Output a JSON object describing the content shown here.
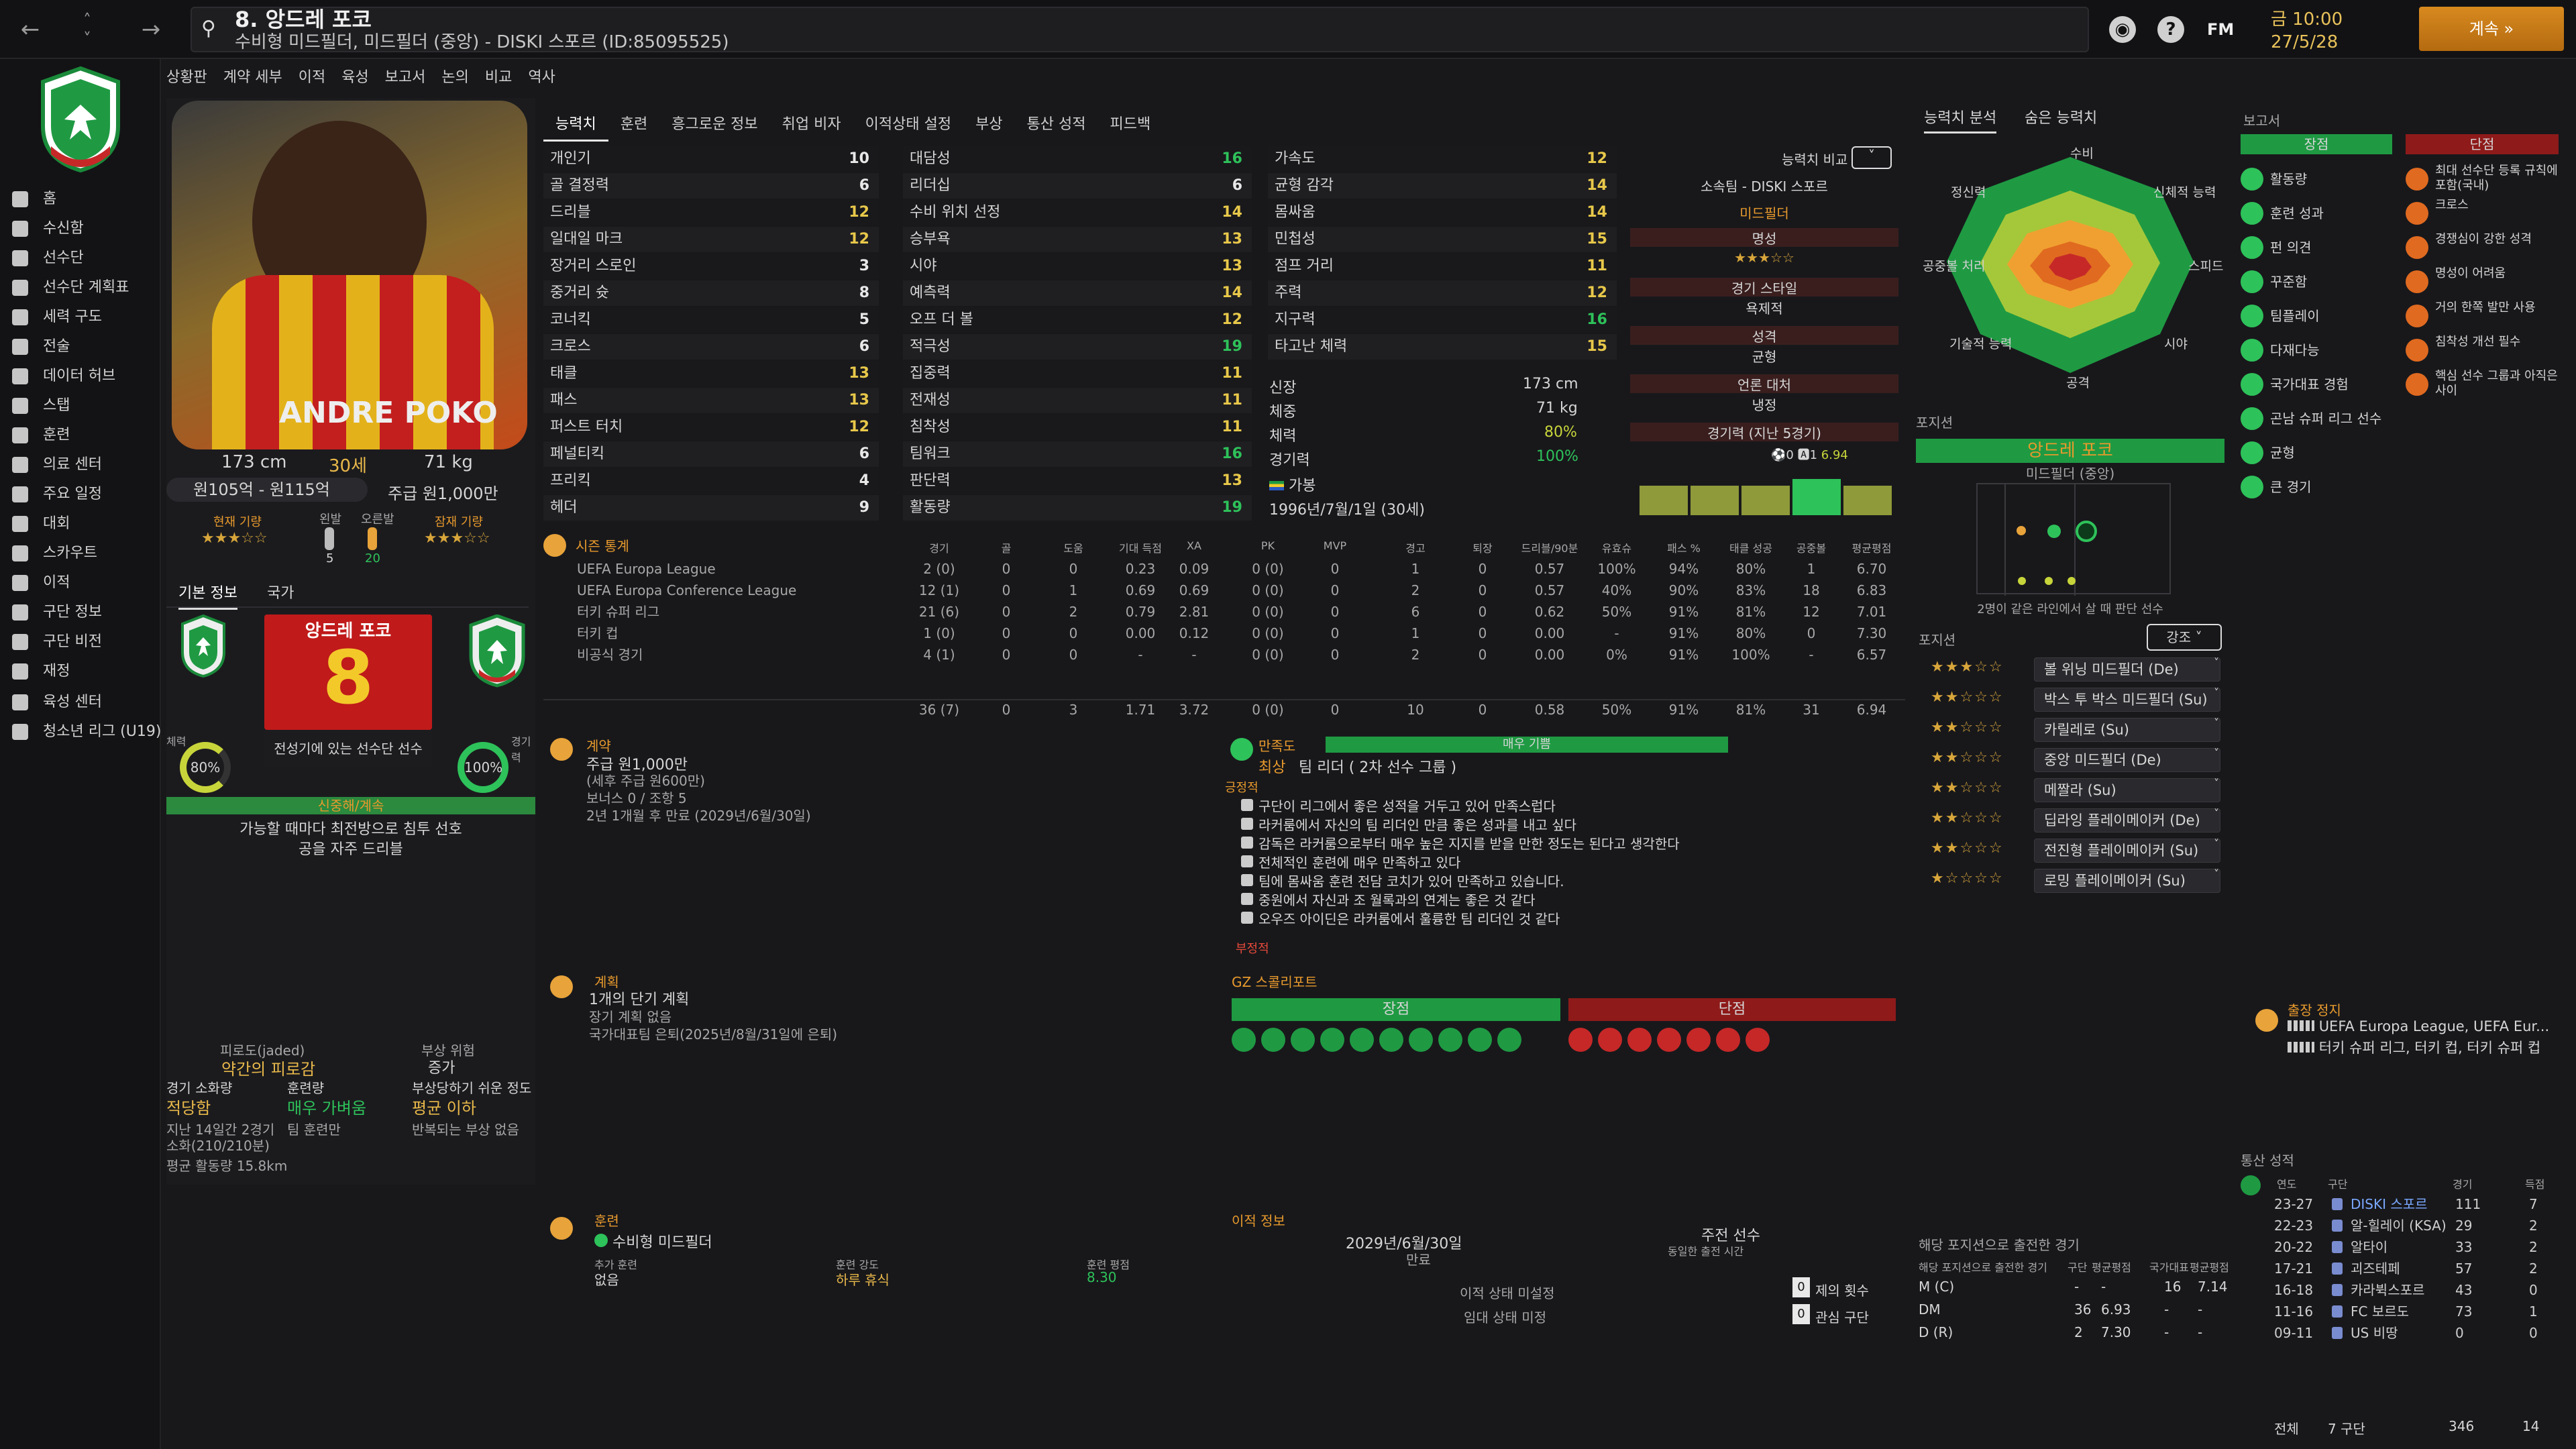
{
  "topbar": {
    "title": "8. 앙드레 포코",
    "subtitle": "수비형 미드필더, 미드필더 (중앙) - DISKI 스포르 (ID:85095525)",
    "date_line1": "금 10:00",
    "date_line2": "27/5/28",
    "continue_label": "계속",
    "fm_label": "FM"
  },
  "sidebar": {
    "items": [
      {
        "label": "홈"
      },
      {
        "label": "수신함"
      },
      {
        "label": "선수단"
      },
      {
        "label": "선수단 계획표"
      },
      {
        "label": "세력 구도"
      },
      {
        "label": "전술"
      },
      {
        "label": "데이터 허브"
      },
      {
        "label": "스탭"
      },
      {
        "label": "훈련"
      },
      {
        "label": "의료 센터"
      },
      {
        "label": "주요 일정"
      },
      {
        "label": "대회"
      },
      {
        "label": "스카우트"
      },
      {
        "label": "이적"
      },
      {
        "label": "구단 정보"
      },
      {
        "label": "구단 비전"
      },
      {
        "label": "재정"
      },
      {
        "label": "육성 센터"
      },
      {
        "label": "청소년 리그 (U19)"
      }
    ]
  },
  "subnav": [
    "상황판",
    "계약 세부",
    "이적",
    "육성",
    "보고서",
    "논의",
    "비교",
    "역사"
  ],
  "profile": {
    "height": "173 cm",
    "age": "30세",
    "weight": "71 kg",
    "value_range": "원105억 - 원115억",
    "wage": "주급 원1,000만",
    "current_ability_label": "현재 기량",
    "left_foot_label": "왼발",
    "right_foot_label": "오른발",
    "left_foot_val": "5",
    "right_foot_val": "20",
    "potential_label": "잠재 기량",
    "photo_name": "ANDRE POKO",
    "tab_basic": "기본 정보",
    "tab_nation": "국가",
    "name_box": "앙드레 포코",
    "number": "8",
    "squad_status": "전성기에 있는 선수단 선수",
    "fitness_label": "체력",
    "fitness": "80%",
    "match_sharp_label": "경기력",
    "match_sharp": "100%",
    "personality": "신중해/계속",
    "pref1": "가능할 때마다 최전방으로 침투 선호",
    "pref2": "공을 자주 드리블"
  },
  "condition": {
    "fatigue_label": "피로도(jaded)",
    "fatigue_val": "약간의 피로감",
    "injury_label": "부상 위험",
    "injury_val": "증가",
    "match_load_label": "경기 소화량",
    "match_load_val": "적당함",
    "training_label": "훈련량",
    "training_val": "매우 가벼움",
    "prone_label": "부상당하기 쉬운 정도",
    "prone_val": "평균 이하",
    "load_note1": "지난 14일간 2경기",
    "load_note2": "소화(210/210분)",
    "training_note": "팀 훈련만",
    "injury_note": "반복되는 부상 없음",
    "distance": "평균 활동량 15.8km"
  },
  "tabs": [
    "능력치",
    "훈련",
    "흥그로운 정보",
    "취업 비자",
    "이적상태 설정",
    "부상",
    "통산 성적",
    "피드백"
  ],
  "attributes": {
    "col1": [
      {
        "name": "개인기",
        "val": "10"
      },
      {
        "name": "골 결정력",
        "val": "6"
      },
      {
        "name": "드리블",
        "val": "12"
      },
      {
        "name": "일대일 마크",
        "val": "12"
      },
      {
        "name": "장거리 스로인",
        "val": "3"
      },
      {
        "name": "중거리 슛",
        "val": "8"
      },
      {
        "name": "코너킥",
        "val": "5"
      },
      {
        "name": "크로스",
        "val": "6"
      },
      {
        "name": "태클",
        "val": "13"
      },
      {
        "name": "패스",
        "val": "13"
      },
      {
        "name": "퍼스트 터치",
        "val": "12"
      },
      {
        "name": "페널티킥",
        "val": "6"
      },
      {
        "name": "프리킥",
        "val": "4"
      },
      {
        "name": "헤더",
        "val": "9"
      }
    ],
    "col2": [
      {
        "name": "대담성",
        "val": "16"
      },
      {
        "name": "리더십",
        "val": "6"
      },
      {
        "name": "수비 위치 선정",
        "val": "14"
      },
      {
        "name": "승부욕",
        "val": "13"
      },
      {
        "name": "시야",
        "val": "13"
      },
      {
        "name": "예측력",
        "val": "14"
      },
      {
        "name": "오프 더 볼",
        "val": "12"
      },
      {
        "name": "적극성",
        "val": "19"
      },
      {
        "name": "집중력",
        "val": "11"
      },
      {
        "name": "전재성",
        "val": "11"
      },
      {
        "name": "침착성",
        "val": "11"
      },
      {
        "name": "팀워크",
        "val": "16"
      },
      {
        "name": "판단력",
        "val": "13"
      },
      {
        "name": "활동량",
        "val": "19"
      }
    ],
    "col3": [
      {
        "name": "가속도",
        "val": "12"
      },
      {
        "name": "균형 감각",
        "val": "14"
      },
      {
        "name": "몸싸움",
        "val": "14"
      },
      {
        "name": "민첩성",
        "val": "15"
      },
      {
        "name": "점프 거리",
        "val": "11"
      },
      {
        "name": "주력",
        "val": "12"
      },
      {
        "name": "지구력",
        "val": "16"
      },
      {
        "name": "타고난 체력",
        "val": "15"
      }
    ]
  },
  "bio": {
    "height_label": "신장",
    "height": "173 cm",
    "weight_label": "체중",
    "weight": "71 kg",
    "fitness_label": "체력",
    "fitness": "80%",
    "sharpness_label": "경기력",
    "sharpness": "100%",
    "status": "가봉",
    "dob": "1996년/7월/1일 (30세)"
  },
  "compare": {
    "label": "능력치 비교",
    "club": "소속팀 - DISKI 스포르",
    "position": "미드필더",
    "reputation_label": "명성",
    "style_label": "경기 스타일",
    "style_val": "욕제적",
    "character_label": "성격",
    "character_val": "균형",
    "media_label": "언론 대처",
    "media_val": "냉정",
    "form_label": "경기력 (지난 5경기)",
    "form_goals": "0",
    "form_assists": "1",
    "form_rating": "6.94"
  },
  "season_stats": {
    "title": "시즌 통계",
    "headers": [
      "경기",
      "골",
      "도움",
      "기대 득점",
      "XA",
      "PK",
      "MVP",
      "경고",
      "퇴장",
      "드리블/90분",
      "유효슈",
      "패스 %",
      "태클 성공",
      "공중볼",
      "평균평점"
    ],
    "rows": [
      {
        "comp": "UEFA Europa League",
        "vals": [
          "2 (0)",
          "0",
          "0",
          "0.23",
          "0.09",
          "0 (0)",
          "0",
          "1",
          "0",
          "0.57",
          "100%",
          "94%",
          "80%",
          "1",
          "6.70"
        ]
      },
      {
        "comp": "UEFA Europa Conference League",
        "vals": [
          "12 (1)",
          "0",
          "1",
          "0.69",
          "0.69",
          "0 (0)",
          "0",
          "2",
          "0",
          "0.57",
          "40%",
          "90%",
          "83%",
          "18",
          "6.83"
        ]
      },
      {
        "comp": "터키 슈퍼 리그",
        "vals": [
          "21 (6)",
          "0",
          "2",
          "0.79",
          "2.81",
          "0 (0)",
          "0",
          "6",
          "0",
          "0.62",
          "50%",
          "91%",
          "81%",
          "12",
          "7.01"
        ]
      },
      {
        "comp": "터키 컵",
        "vals": [
          "1 (0)",
          "0",
          "0",
          "0.00",
          "0.12",
          "0 (0)",
          "0",
          "1",
          "0",
          "0.00",
          "-",
          "91%",
          "80%",
          "0",
          "7.30"
        ]
      },
      {
        "comp": "비공식 경기",
        "vals": [
          "4 (1)",
          "0",
          "0",
          "-",
          "-",
          "0 (0)",
          "0",
          "2",
          "0",
          "0.00",
          "0%",
          "91%",
          "100%",
          "-",
          "6.57"
        ]
      }
    ],
    "total": [
      "36 (7)",
      "0",
      "3",
      "1.71",
      "3.72",
      "0 (0)",
      "0",
      "10",
      "0",
      "0.58",
      "50%",
      "91%",
      "81%",
      "31",
      "6.94"
    ]
  },
  "contract": {
    "title": "계약",
    "wage": "주급 원1,000만",
    "wage_note": "(세후 주급 원600만)",
    "bonus": "보너스 0 / 조항 5",
    "expires": "2년 1개월 후 만료 (2029년/6월/30일)"
  },
  "happiness": {
    "title": "만족도",
    "level": "매우 기쁨",
    "role": "최상",
    "role_note": "팀 리더 ( 2차 선수 그룹 )",
    "positive_label": "긍정적",
    "negative_label": "부정적",
    "items": [
      "구단이 리그에서 좋은 성적을 거두고 있어 만족스럽다",
      "라커룸에서 자신의 팀 리더인 만큼 좋은 성과를 내고 싶다",
      "감독은 라커룸으로부터 매우 높은 지지를 받을 만한 정도는 된다고 생각한다",
      "전체적인 훈련에 매우 만족하고 있다",
      "팀에 몸싸움 훈련 전담 코치가 있어 만족하고 있습니다.",
      "중원에서 자신과 조 월록과의 연계는 좋은 것 같다",
      "오우즈 아이딘은 라커룸에서 훌륭한 팀 리더인 것 같다"
    ]
  },
  "plans": {
    "title": "계획",
    "short": "1개의 단기 계획",
    "long": "장기 계획 없음",
    "national": "국가대표팀 은퇴(2025년/8월/31일에 은퇴)"
  },
  "gz": {
    "title": "GZ 스콜리포트",
    "strengths": "장점",
    "weaknesses": "단점"
  },
  "training": {
    "title": "훈련",
    "position": "수비형 미드필더",
    "extra_label": "추가 훈련",
    "extra_val": "없음",
    "intensity_label": "훈련 강도",
    "intensity_val": "하루 휴식",
    "rating_label": "훈련 평점",
    "rating_val": "8.30"
  },
  "transfer": {
    "title": "이적 정보",
    "contract_end": "2029년/6월/30일",
    "contract_end_label": "만료",
    "squad_status": "주전 선수",
    "squad_status_note": "동일한 출전 시간",
    "transfer_status": "이적 상태 미설정",
    "loan_status": "임대 상태 미정",
    "offers": "0",
    "offers_label": "제의 횟수",
    "interested": "0",
    "interested_label": "관심 구단"
  },
  "right_tabs": [
    "능력치 분석",
    "숨은 능력치"
  ],
  "radar_labels": [
    "수비",
    "신체적 능력",
    "스피드",
    "시야",
    "공격",
    "기술적 능력",
    "공중볼 처리",
    "정신력"
  ],
  "position_panel": {
    "title": "포지션",
    "name": "앙드레 포코",
    "role": "미드필더 (중앙)",
    "note": "2명이 같은 라인에서 살 때 판단 선수"
  },
  "roles_panel": {
    "title": "포지션",
    "dropdown": "강조",
    "roles": [
      {
        "stars": "★★★☆☆",
        "name": "볼 위닝 미드필더 (De)"
      },
      {
        "stars": "★★☆☆☆",
        "name": "박스 투 박스 미드필더 (Su)"
      },
      {
        "stars": "★★☆☆☆",
        "name": "카릴레로 (Su)"
      },
      {
        "stars": "★★☆☆☆",
        "name": "중앙 미드필더 (De)"
      },
      {
        "stars": "★★☆☆☆",
        "name": "메짤라 (Su)"
      },
      {
        "stars": "★★☆☆☆",
        "name": "딥라잉 플레이메이커 (De)"
      },
      {
        "stars": "★★☆☆☆",
        "name": "전진형 플레이메이커 (Su)"
      },
      {
        "stars": "★☆☆☆☆",
        "name": "로밍 플레이메이커 (Su)"
      }
    ]
  },
  "positions_played": {
    "title": "해당 포지션으로 출전한 경기",
    "header": [
      "해당 포지션으로 출전한 경기",
      "구단",
      "평균평점",
      "국가대표",
      "평균평점"
    ],
    "rows": [
      {
        "pos": "M (C)",
        "a": "-",
        "b": "-",
        "c": "16",
        "d": "7.14"
      },
      {
        "pos": "DM",
        "a": "36",
        "b": "6.93",
        "c": "-",
        "d": "-"
      },
      {
        "pos": "D (R)",
        "a": "2",
        "b": "7.30",
        "c": "-",
        "d": "-"
      }
    ]
  },
  "report": {
    "title": "보고서",
    "pros_label": "장점",
    "cons_label": "단점",
    "pros": [
      "활동량",
      "훈련 성과",
      "펀 의견",
      "꾸준함",
      "팀플레이",
      "다재다능",
      "국가대표 경험",
      "곤남 슈퍼 리그 선수",
      "균형",
      "큰 경기"
    ],
    "cons": [
      "최대 선수단 등록 규칙에 포함(국내)",
      "크로스",
      "경쟁심이 강한 성격",
      "명성이 어려움",
      "거의 한쪽 발만 사용",
      "침착성 개선 필수",
      "핵심 선수 그룹과 아직은 사이"
    ]
  },
  "suspension": {
    "title": "출장 정지",
    "line1": "UEFA Europa League, UEFA Eur...",
    "line2": "터키 슈퍼 리그, 터키 컵, 터키 슈퍼 컵"
  },
  "career": {
    "title": "통산 성적",
    "headers": [
      "연도",
      "구단",
      "경기",
      "득점"
    ],
    "rows": [
      {
        "year": "23-27",
        "club": "DISKI 스포르",
        "apps": "111",
        "goals": "7"
      },
      {
        "year": "22-23",
        "club": "알-힐레이 (KSA)",
        "apps": "29",
        "goals": "2"
      },
      {
        "year": "20-22",
        "club": "알타이",
        "apps": "33",
        "goals": "2"
      },
      {
        "year": "17-21",
        "club": "괴즈테페",
        "apps": "57",
        "goals": "2"
      },
      {
        "year": "16-18",
        "club": "카라뷕스포르",
        "apps": "43",
        "goals": "0"
      },
      {
        "year": "11-16",
        "club": "FC 보르도",
        "apps": "73",
        "goals": "1"
      },
      {
        "year": "09-11",
        "club": "US 비땅",
        "apps": "0",
        "goals": "0"
      }
    ],
    "total_label": "전체",
    "total_clubs": "7 구단",
    "total_apps": "346",
    "total_goals": "14"
  },
  "colors": {
    "accent": "#e8a33a",
    "green": "#1f9a43",
    "red": "#8e1a1a",
    "yellow": "#e8c84a"
  }
}
